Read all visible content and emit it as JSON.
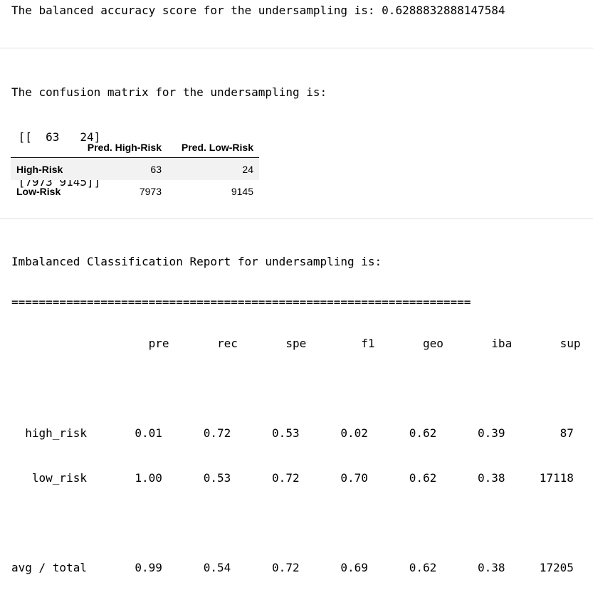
{
  "balanced_accuracy_line": "The balanced accuracy score for the undersampling is: 0.6288832888147584",
  "confusion": {
    "title": "The confusion matrix for the undersampling is:",
    "row1": " [[  63   24]",
    "row2": " [7973 9145]]"
  },
  "dataframe": {
    "columns": [
      "",
      "Pred. High-Risk",
      "Pred. Low-Risk"
    ],
    "rows": [
      {
        "label": "High-Risk",
        "pred_high": "63",
        "pred_low": "24"
      },
      {
        "label": "Low-Risk",
        "pred_high": "7973",
        "pred_low": "9145"
      }
    ]
  },
  "report": {
    "title": "Imbalanced Classification Report for undersampling is:",
    "rule": "===================================================================",
    "header": "                    pre       rec       spe        f1       geo       iba       sup",
    "blank1": "",
    "high_risk": "  high_risk       0.01      0.72      0.53      0.02      0.62      0.39        87",
    "low_risk": "   low_risk       1.00      0.53      0.72      0.70      0.62      0.38     17118",
    "blank2": "",
    "avg_total": "avg / total       0.99      0.54      0.72      0.69      0.62      0.38     17205"
  }
}
